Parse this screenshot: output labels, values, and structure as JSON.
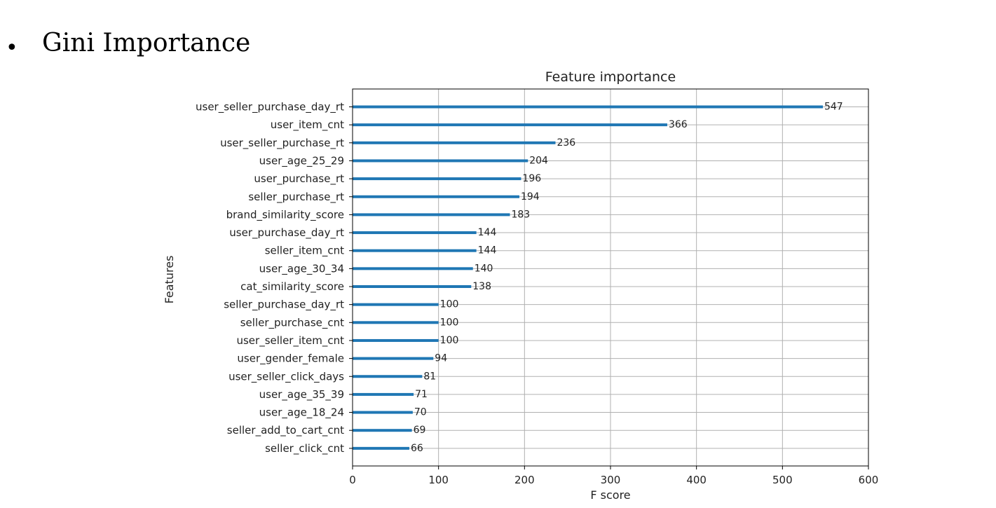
{
  "slide": {
    "bullet": "•",
    "heading": "Gini Importance"
  },
  "chart_data": {
    "type": "bar",
    "orientation": "horizontal",
    "title": "Feature importance",
    "xlabel": "F score",
    "ylabel": "Features",
    "xlim": [
      0,
      600
    ],
    "xticks": [
      "0",
      "100",
      "200",
      "300",
      "400",
      "500",
      "600"
    ],
    "grid": true,
    "bar_color": "#1f77b4",
    "categories": [
      "user_seller_purchase_day_rt",
      "user_item_cnt",
      "user_seller_purchase_rt",
      "user_age_25_29",
      "user_purchase_rt",
      "seller_purchase_rt",
      "brand_similarity_score",
      "user_purchase_day_rt",
      "seller_item_cnt",
      "user_age_30_34",
      "cat_similarity_score",
      "seller_purchase_day_rt",
      "seller_purchase_cnt",
      "user_seller_item_cnt",
      "user_gender_female",
      "user_seller_click_days",
      "user_age_35_39",
      "user_age_18_24",
      "seller_add_to_cart_cnt",
      "seller_click_cnt"
    ],
    "values": [
      547,
      366,
      236,
      204,
      196,
      194,
      183,
      144,
      144,
      140,
      138,
      100,
      100,
      100,
      94,
      81,
      71,
      70,
      69,
      66
    ]
  }
}
